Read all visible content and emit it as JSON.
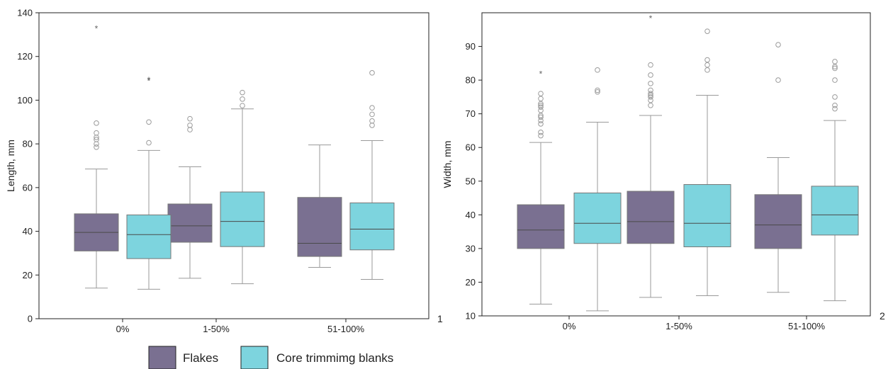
{
  "legend": [
    {
      "label": "Flakes",
      "color": "#7a7091"
    },
    {
      "label": "Core trimmimg blanks",
      "color": "#7dd4de"
    }
  ],
  "chart_data": [
    {
      "type": "box",
      "panel_label": "1",
      "ylabel": "Length, mm",
      "ylim": [
        0,
        140
      ],
      "yticks": [
        0,
        20,
        40,
        60,
        80,
        100,
        120,
        140
      ],
      "categories": [
        "0%",
        "1-50%",
        "51-100%"
      ],
      "series": [
        {
          "name": "Flakes",
          "color": "#7a7091",
          "boxes": [
            {
              "min": 14,
              "q1": 31,
              "median": 39.5,
              "q3": 48,
              "max": 68.5,
              "outliers": [
                78.5,
                80,
                82,
                83,
                85,
                89.5
              ],
              "extremes": [
                133
              ]
            },
            {
              "min": 18.5,
              "q1": 35,
              "median": 42.5,
              "q3": 52.5,
              "max": 69.5,
              "outliers": [
                86.5,
                88.5,
                91.5
              ],
              "extremes": []
            },
            {
              "min": 23.5,
              "q1": 28.5,
              "median": 34.5,
              "q3": 55.5,
              "max": 79.5,
              "outliers": [],
              "extremes": []
            }
          ]
        },
        {
          "name": "Core trimmimg blanks",
          "color": "#7dd4de",
          "boxes": [
            {
              "min": 13.5,
              "q1": 27.5,
              "median": 38.5,
              "q3": 47.5,
              "max": 77,
              "outliers": [
                80.5,
                90
              ],
              "extremes": [
                109,
                109.5
              ]
            },
            {
              "min": 16,
              "q1": 33,
              "median": 44.5,
              "q3": 58,
              "max": 96,
              "outliers": [
                97.5,
                100.5,
                103.5
              ],
              "extremes": []
            },
            {
              "min": 18,
              "q1": 31.5,
              "median": 41,
              "q3": 53,
              "max": 81.5,
              "outliers": [
                88.5,
                90.5,
                93.5,
                96.5,
                112.5
              ],
              "extremes": []
            }
          ]
        }
      ]
    },
    {
      "type": "box",
      "panel_label": "2",
      "ylabel": "Width, mm",
      "ylim": [
        10,
        100
      ],
      "yticks": [
        10,
        20,
        30,
        40,
        50,
        60,
        70,
        80,
        90
      ],
      "categories": [
        "0%",
        "1-50%",
        "51-100%"
      ],
      "series": [
        {
          "name": "Flakes",
          "color": "#7a7091",
          "boxes": [
            {
              "min": 13.5,
              "q1": 30,
              "median": 35.5,
              "q3": 43,
              "max": 61.5,
              "outliers": [
                63.5,
                64.5,
                67,
                68,
                69,
                69.5,
                71,
                72,
                72.5,
                73,
                74.5,
                76
              ],
              "extremes": [
                82
              ]
            },
            {
              "min": 15.5,
              "q1": 31.5,
              "median": 38,
              "q3": 47,
              "max": 69.5,
              "outliers": [
                72.5,
                74,
                75,
                75.5,
                76,
                77,
                79,
                81.5,
                84.5
              ],
              "extremes": [
                98.5
              ]
            },
            {
              "min": 17,
              "q1": 30,
              "median": 37,
              "q3": 46,
              "max": 57,
              "outliers": [
                80,
                90.5
              ],
              "extremes": []
            }
          ]
        },
        {
          "name": "Core trimmimg blanks",
          "color": "#7dd4de",
          "boxes": [
            {
              "min": 11.5,
              "q1": 31.5,
              "median": 37.5,
              "q3": 46.5,
              "max": 67.5,
              "outliers": [
                76.5,
                77,
                83
              ],
              "extremes": []
            },
            {
              "min": 16,
              "q1": 30.5,
              "median": 37.5,
              "q3": 49,
              "max": 75.5,
              "outliers": [
                83,
                84.5,
                86,
                94.5
              ],
              "extremes": []
            },
            {
              "min": 14.5,
              "q1": 34,
              "median": 40,
              "q3": 48.5,
              "max": 68,
              "outliers": [
                71.5,
                72.5,
                75,
                80,
                83.5,
                84,
                85.5
              ],
              "extremes": []
            }
          ]
        }
      ]
    }
  ]
}
